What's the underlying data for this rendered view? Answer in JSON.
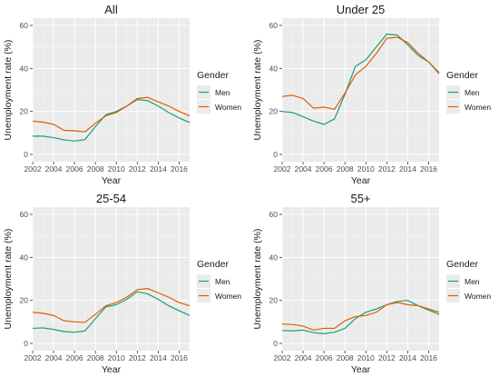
{
  "colors": {
    "panel_bg": "#ebebeb",
    "grid_major": "#ffffff",
    "men": "#1b9e77",
    "women": "#d95f02"
  },
  "chart_data": [
    {
      "type": "line",
      "title": "All",
      "xlabel": "Year",
      "ylabel": "Unemployment rate (%)",
      "xlim": [
        2002,
        2017
      ],
      "ylim": [
        0,
        60
      ],
      "x_ticks": [
        "2002",
        "2004",
        "2006",
        "2008",
        "2010",
        "2012",
        "2014",
        "2016"
      ],
      "y_ticks": [
        "0",
        "20",
        "40",
        "60"
      ],
      "grid": true,
      "legend": {
        "title": "Gender",
        "position": "right"
      },
      "x": [
        2002,
        2003,
        2004,
        2005,
        2006,
        2007,
        2008,
        2009,
        2010,
        2011,
        2012,
        2013,
        2014,
        2015,
        2016,
        2017
      ],
      "series": [
        {
          "name": "Men",
          "values": [
            8.5,
            8.5,
            7.8,
            6.8,
            6.2,
            6.9,
            13.0,
            18.5,
            20.0,
            22.5,
            25.5,
            25.0,
            22.5,
            19.5,
            17.0,
            14.8
          ]
        },
        {
          "name": "Women",
          "values": [
            15.5,
            15.0,
            14.0,
            11.2,
            11.0,
            10.5,
            14.5,
            18.0,
            19.5,
            22.5,
            26.0,
            26.5,
            24.5,
            22.5,
            20.0,
            18.0
          ]
        }
      ]
    },
    {
      "type": "line",
      "title": "Under 25",
      "xlabel": "Year",
      "ylabel": "Unemployment rate (%)",
      "xlim": [
        2002,
        2017
      ],
      "ylim": [
        0,
        60
      ],
      "x_ticks": [
        "2002",
        "2004",
        "2006",
        "2008",
        "2010",
        "2012",
        "2014",
        "2016"
      ],
      "y_ticks": [
        "0",
        "20",
        "40",
        "60"
      ],
      "grid": true,
      "legend": {
        "title": "Gender",
        "position": "right"
      },
      "x": [
        2002,
        2003,
        2004,
        2005,
        2006,
        2007,
        2008,
        2009,
        2010,
        2011,
        2012,
        2013,
        2014,
        2015,
        2016,
        2017
      ],
      "series": [
        {
          "name": "Men",
          "values": [
            20.0,
            19.5,
            17.5,
            15.5,
            14.0,
            16.5,
            28.0,
            41.0,
            44.0,
            50.0,
            56.0,
            55.5,
            51.0,
            46.0,
            43.0,
            38.0
          ]
        },
        {
          "name": "Women",
          "values": [
            27.0,
            27.5,
            26.0,
            21.5,
            22.0,
            21.0,
            28.5,
            37.0,
            41.0,
            47.0,
            54.0,
            54.5,
            52.0,
            47.0,
            43.0,
            37.5
          ]
        }
      ]
    },
    {
      "type": "line",
      "title": "25-54",
      "xlabel": "Year",
      "ylabel": "Unemployment rate (%)",
      "xlim": [
        2002,
        2017
      ],
      "ylim": [
        0,
        60
      ],
      "x_ticks": [
        "2002",
        "2004",
        "2006",
        "2008",
        "2010",
        "2012",
        "2014",
        "2016"
      ],
      "y_ticks": [
        "0",
        "20",
        "40",
        "60"
      ],
      "grid": true,
      "legend": {
        "title": "Gender",
        "position": "right"
      },
      "x": [
        2002,
        2003,
        2004,
        2005,
        2006,
        2007,
        2008,
        2009,
        2010,
        2011,
        2012,
        2013,
        2014,
        2015,
        2016,
        2017
      ],
      "series": [
        {
          "name": "Men",
          "values": [
            7.0,
            7.2,
            6.5,
            5.5,
            5.2,
            5.8,
            11.5,
            17.0,
            18.0,
            20.5,
            24.0,
            23.0,
            20.5,
            17.5,
            15.2,
            13.0
          ]
        },
        {
          "name": "Women",
          "values": [
            14.5,
            14.0,
            13.0,
            10.5,
            10.0,
            9.8,
            13.5,
            17.5,
            19.0,
            21.5,
            25.0,
            25.5,
            23.5,
            21.5,
            19.0,
            17.5
          ]
        }
      ]
    },
    {
      "type": "line",
      "title": "55+",
      "xlabel": "Year",
      "ylabel": "Unemployment rate (%)",
      "xlim": [
        2002,
        2017
      ],
      "ylim": [
        0,
        60
      ],
      "x_ticks": [
        "2002",
        "2004",
        "2006",
        "2008",
        "2010",
        "2012",
        "2014",
        "2016"
      ],
      "y_ticks": [
        "0",
        "20",
        "40",
        "60"
      ],
      "grid": true,
      "legend": {
        "title": "Gender",
        "position": "right"
      },
      "x": [
        2002,
        2003,
        2004,
        2005,
        2006,
        2007,
        2008,
        2009,
        2010,
        2011,
        2012,
        2013,
        2014,
        2015,
        2016,
        2017
      ],
      "series": [
        {
          "name": "Men",
          "values": [
            6.0,
            5.8,
            6.2,
            5.0,
            4.5,
            5.2,
            7.0,
            11.5,
            14.5,
            16.0,
            18.0,
            19.5,
            20.0,
            17.5,
            15.5,
            13.5
          ]
        },
        {
          "name": "Women",
          "values": [
            9.0,
            8.8,
            8.0,
            6.2,
            7.0,
            7.0,
            10.5,
            12.5,
            13.0,
            14.5,
            18.0,
            19.0,
            18.0,
            17.5,
            16.0,
            14.5
          ]
        }
      ]
    }
  ]
}
